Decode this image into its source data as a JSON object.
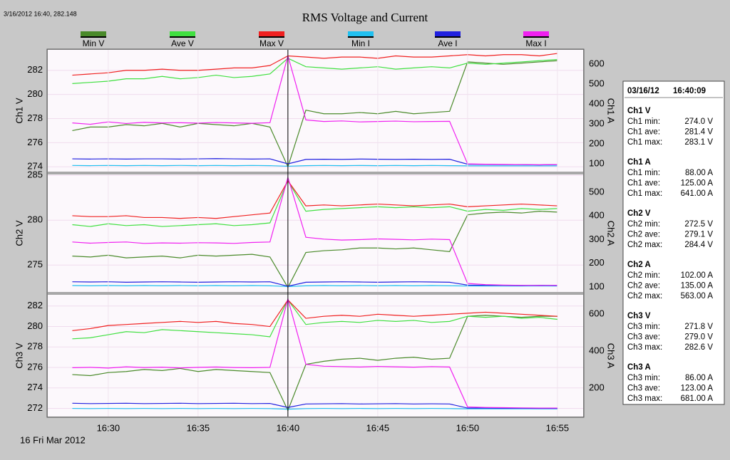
{
  "readout": "3/16/2012 16:40, 282.148",
  "title": "RMS Voltage and Current",
  "date_label": "16 Fri Mar 2012",
  "chart_data": [
    {
      "type": "line",
      "ylabel": "Ch1 V",
      "y2label": "Ch1 A",
      "grid": true,
      "x": [
        "16:28",
        "16:29",
        "16:30",
        "16:31",
        "16:32",
        "16:33",
        "16:34",
        "16:35",
        "16:36",
        "16:37",
        "16:38",
        "16:39",
        "16:40",
        "16:41",
        "16:42",
        "16:43",
        "16:44",
        "16:45",
        "16:46",
        "16:47",
        "16:48",
        "16:49",
        "16:50",
        "16:51",
        "16:52",
        "16:53",
        "16:54",
        "16:55"
      ],
      "xlim": [
        "16:26:38",
        "16:56:26"
      ],
      "ylim": [
        273.6,
        283.7
      ],
      "yticks": [
        274,
        276,
        278,
        280,
        282
      ],
      "y2lim": [
        61,
        671
      ],
      "y2ticks": [
        100,
        200,
        300,
        400,
        500,
        600
      ],
      "series": [
        {
          "name": "Min V",
          "color": "#4a8a2a",
          "values": [
            277.0,
            277.3,
            277.3,
            277.5,
            277.4,
            277.6,
            277.3,
            277.6,
            277.5,
            277.4,
            277.6,
            277.3,
            274.0,
            278.7,
            278.4,
            278.4,
            278.5,
            278.4,
            278.6,
            278.4,
            278.5,
            278.6,
            282.7,
            282.6,
            282.5,
            282.6,
            282.7,
            282.8
          ]
        },
        {
          "name": "Ave V",
          "color": "#40e040",
          "values": [
            280.9,
            281.0,
            281.1,
            281.3,
            281.3,
            281.5,
            281.3,
            281.4,
            281.6,
            281.4,
            281.5,
            281.7,
            283.0,
            282.3,
            282.2,
            282.1,
            282.2,
            282.3,
            282.1,
            282.2,
            282.3,
            282.2,
            282.6,
            282.5,
            282.6,
            282.7,
            282.8,
            282.9
          ]
        },
        {
          "name": "Max V",
          "color": "#f02020",
          "values": [
            281.6,
            281.7,
            281.8,
            282.0,
            282.0,
            282.1,
            282.0,
            282.0,
            282.1,
            282.2,
            282.2,
            282.4,
            283.2,
            283.1,
            283.0,
            283.1,
            283.1,
            283.0,
            283.2,
            283.1,
            283.1,
            283.2,
            283.3,
            283.2,
            283.3,
            283.3,
            283.2,
            283.4
          ]
        },
        {
          "name": "Min I",
          "color": "#20c0f0",
          "axis": "y2",
          "values": [
            92,
            91,
            92,
            91,
            92,
            91,
            92,
            91,
            92,
            91,
            92,
            91,
            88,
            91,
            92,
            91,
            92,
            91,
            92,
            91,
            92,
            91,
            90,
            90,
            90,
            90,
            90,
            90
          ]
        },
        {
          "name": "Ave I",
          "color": "#2020e0",
          "axis": "y2",
          "values": [
            125,
            124,
            125,
            124,
            125,
            125,
            124,
            125,
            126,
            125,
            124,
            125,
            100,
            122,
            123,
            122,
            124,
            123,
            122,
            123,
            122,
            123,
            98,
            97,
            96,
            96,
            95,
            96
          ]
        },
        {
          "name": "Max I",
          "color": "#f020f0",
          "axis": "y2",
          "values": [
            305,
            298,
            310,
            302,
            308,
            305,
            306,
            304,
            307,
            305,
            303,
            306,
            641,
            320,
            312,
            315,
            310,
            312,
            314,
            311,
            312,
            313,
            100,
            98,
            97,
            96,
            95,
            96
          ]
        }
      ]
    },
    {
      "type": "line",
      "ylabel": "Ch2 V",
      "y2label": "Ch2 A",
      "grid": true,
      "x": [
        "16:28",
        "16:29",
        "16:30",
        "16:31",
        "16:32",
        "16:33",
        "16:34",
        "16:35",
        "16:36",
        "16:37",
        "16:38",
        "16:39",
        "16:40",
        "16:41",
        "16:42",
        "16:43",
        "16:44",
        "16:45",
        "16:46",
        "16:47",
        "16:48",
        "16:49",
        "16:50",
        "16:51",
        "16:52",
        "16:53",
        "16:54",
        "16:55"
      ],
      "xlim": [
        "16:26:38",
        "16:56:26"
      ],
      "ylim": [
        272.0,
        285.1
      ],
      "yticks": [
        275,
        280,
        285
      ],
      "y2lim": [
        79,
        575
      ],
      "y2ticks": [
        100,
        200,
        300,
        400,
        500
      ],
      "series": [
        {
          "name": "Min V",
          "color": "#4a8a2a",
          "values": [
            276.0,
            275.9,
            276.1,
            275.8,
            275.9,
            276.0,
            275.8,
            276.1,
            276.0,
            276.1,
            276.2,
            275.9,
            272.5,
            276.4,
            276.6,
            276.7,
            276.9,
            276.9,
            276.8,
            276.9,
            276.7,
            276.5,
            280.6,
            280.8,
            280.9,
            280.8,
            281.0,
            280.9
          ]
        },
        {
          "name": "Ave V",
          "color": "#40e040",
          "values": [
            279.5,
            279.3,
            279.6,
            279.4,
            279.5,
            279.3,
            279.4,
            279.5,
            279.6,
            279.4,
            279.5,
            279.7,
            284.4,
            281.0,
            281.2,
            281.3,
            281.4,
            281.5,
            281.4,
            281.5,
            281.4,
            281.5,
            281.0,
            281.2,
            281.1,
            281.3,
            281.2,
            281.3
          ]
        },
        {
          "name": "Max V",
          "color": "#f02020",
          "values": [
            280.5,
            280.4,
            280.4,
            280.5,
            280.3,
            280.3,
            280.2,
            280.3,
            280.2,
            280.4,
            280.6,
            280.8,
            284.4,
            281.6,
            281.7,
            281.6,
            281.7,
            281.8,
            281.7,
            281.6,
            281.7,
            281.8,
            281.5,
            281.6,
            281.7,
            281.8,
            281.7,
            281.6
          ]
        },
        {
          "name": "Min I",
          "color": "#20c0f0",
          "axis": "y2",
          "values": [
            106,
            105,
            106,
            105,
            106,
            105,
            106,
            105,
            106,
            105,
            106,
            105,
            102,
            105,
            106,
            105,
            106,
            105,
            106,
            105,
            106,
            105,
            104,
            104,
            104,
            104,
            104,
            104
          ]
        },
        {
          "name": "Ave I",
          "color": "#2020e0",
          "axis": "y2",
          "values": [
            122,
            121,
            122,
            120,
            121,
            122,
            121,
            120,
            121,
            122,
            121,
            122,
            103,
            120,
            121,
            122,
            121,
            120,
            121,
            122,
            121,
            120,
            108,
            107,
            107,
            106,
            107,
            106
          ]
        },
        {
          "name": "Max I",
          "color": "#f020f0",
          "axis": "y2",
          "values": [
            290,
            285,
            288,
            290,
            284,
            286,
            285,
            287,
            286,
            284,
            288,
            290,
            563,
            310,
            302,
            298,
            300,
            303,
            301,
            299,
            302,
            300,
            115,
            110,
            108,
            107,
            106,
            107
          ]
        }
      ]
    },
    {
      "type": "line",
      "ylabel": "Ch3 V",
      "y2label": "Ch3 A",
      "grid": true,
      "x": [
        "16:28",
        "16:29",
        "16:30",
        "16:31",
        "16:32",
        "16:33",
        "16:34",
        "16:35",
        "16:36",
        "16:37",
        "16:38",
        "16:39",
        "16:40",
        "16:41",
        "16:42",
        "16:43",
        "16:44",
        "16:45",
        "16:46",
        "16:47",
        "16:48",
        "16:49",
        "16:50",
        "16:51",
        "16:52",
        "16:53",
        "16:54",
        "16:55"
      ],
      "xlim": [
        "16:26:38",
        "16:56:26"
      ],
      "xticks": [
        "16:30",
        "16:35",
        "16:40",
        "16:45",
        "16:50",
        "16:55"
      ],
      "ylim": [
        271.2,
        283.1
      ],
      "yticks": [
        272,
        274,
        276,
        278,
        280,
        282
      ],
      "y2lim": [
        46,
        704
      ],
      "y2ticks": [
        200,
        400,
        600
      ],
      "series": [
        {
          "name": "Min V",
          "color": "#4a8a2a",
          "values": [
            275.3,
            275.2,
            275.5,
            275.6,
            275.8,
            275.7,
            275.9,
            275.6,
            275.8,
            275.7,
            275.6,
            275.5,
            271.8,
            276.3,
            276.6,
            276.8,
            276.9,
            276.7,
            276.9,
            277.0,
            276.8,
            276.9,
            281.0,
            281.1,
            281.0,
            280.9,
            281.0,
            281.0
          ]
        },
        {
          "name": "Ave V",
          "color": "#40e040",
          "values": [
            278.8,
            278.9,
            279.2,
            279.5,
            279.4,
            279.7,
            279.6,
            279.5,
            279.4,
            279.3,
            279.2,
            279.0,
            282.6,
            280.2,
            280.4,
            280.5,
            280.4,
            280.6,
            280.5,
            280.6,
            280.4,
            280.5,
            281.0,
            280.9,
            281.0,
            280.8,
            280.9,
            280.7
          ]
        },
        {
          "name": "Max V",
          "color": "#f02020",
          "values": [
            279.6,
            279.8,
            280.1,
            280.2,
            280.3,
            280.4,
            280.5,
            280.4,
            280.5,
            280.3,
            280.2,
            280.0,
            282.6,
            280.8,
            281.0,
            281.1,
            281.0,
            281.2,
            281.1,
            281.0,
            281.1,
            281.2,
            281.3,
            281.4,
            281.3,
            281.2,
            281.1,
            281.0
          ]
        },
        {
          "name": "Min I",
          "color": "#20c0f0",
          "axis": "y2",
          "values": [
            90,
            89,
            90,
            89,
            90,
            89,
            90,
            89,
            90,
            89,
            90,
            89,
            86,
            89,
            90,
            89,
            90,
            89,
            90,
            89,
            90,
            89,
            88,
            88,
            88,
            88,
            88,
            88
          ]
        },
        {
          "name": "Ave I",
          "color": "#2020e0",
          "axis": "y2",
          "values": [
            118,
            116,
            117,
            118,
            116,
            117,
            118,
            116,
            117,
            118,
            116,
            117,
            95,
            114,
            115,
            116,
            114,
            115,
            116,
            114,
            115,
            114,
            92,
            92,
            91,
            91,
            90,
            90
          ]
        },
        {
          "name": "Max I",
          "color": "#f020f0",
          "axis": "y2",
          "values": [
            310,
            312,
            308,
            315,
            311,
            313,
            309,
            312,
            314,
            311,
            310,
            312,
            681,
            328,
            318,
            316,
            314,
            317,
            315,
            313,
            316,
            314,
            98,
            95,
            94,
            93,
            92,
            92
          ]
        }
      ]
    }
  ],
  "stats": {
    "date": "03/16/12",
    "time": "16:40:09",
    "groups": [
      {
        "title": "Ch1 V",
        "rows": [
          [
            "Ch1 min:",
            "274.0 V"
          ],
          [
            "Ch1 ave:",
            "281.4 V"
          ],
          [
            "Ch1 max:",
            "283.1 V"
          ]
        ]
      },
      {
        "title": "Ch1 A",
        "rows": [
          [
            "Ch1 min:",
            "88.00 A"
          ],
          [
            "Ch1 ave:",
            "125.00 A"
          ],
          [
            "Ch1 max:",
            "641.00 A"
          ]
        ]
      },
      {
        "title": "Ch2 V",
        "rows": [
          [
            "Ch2 min:",
            "272.5 V"
          ],
          [
            "Ch2 ave:",
            "279.1 V"
          ],
          [
            "Ch2 max:",
            "284.4 V"
          ]
        ]
      },
      {
        "title": "Ch2 A",
        "rows": [
          [
            "Ch2 min:",
            "102.00 A"
          ],
          [
            "Ch2 ave:",
            "135.00 A"
          ],
          [
            "Ch2 max:",
            "563.00 A"
          ]
        ]
      },
      {
        "title": "Ch3 V",
        "rows": [
          [
            "Ch3 min:",
            "271.8 V"
          ],
          [
            "Ch3 ave:",
            "279.0 V"
          ],
          [
            "Ch3 max:",
            "282.6 V"
          ]
        ]
      },
      {
        "title": "Ch3 A",
        "rows": [
          [
            "Ch3 min:",
            "86.00 A"
          ],
          [
            "Ch3 ave:",
            "123.00 A"
          ],
          [
            "Ch3 max:",
            "681.00 A"
          ]
        ]
      }
    ]
  }
}
